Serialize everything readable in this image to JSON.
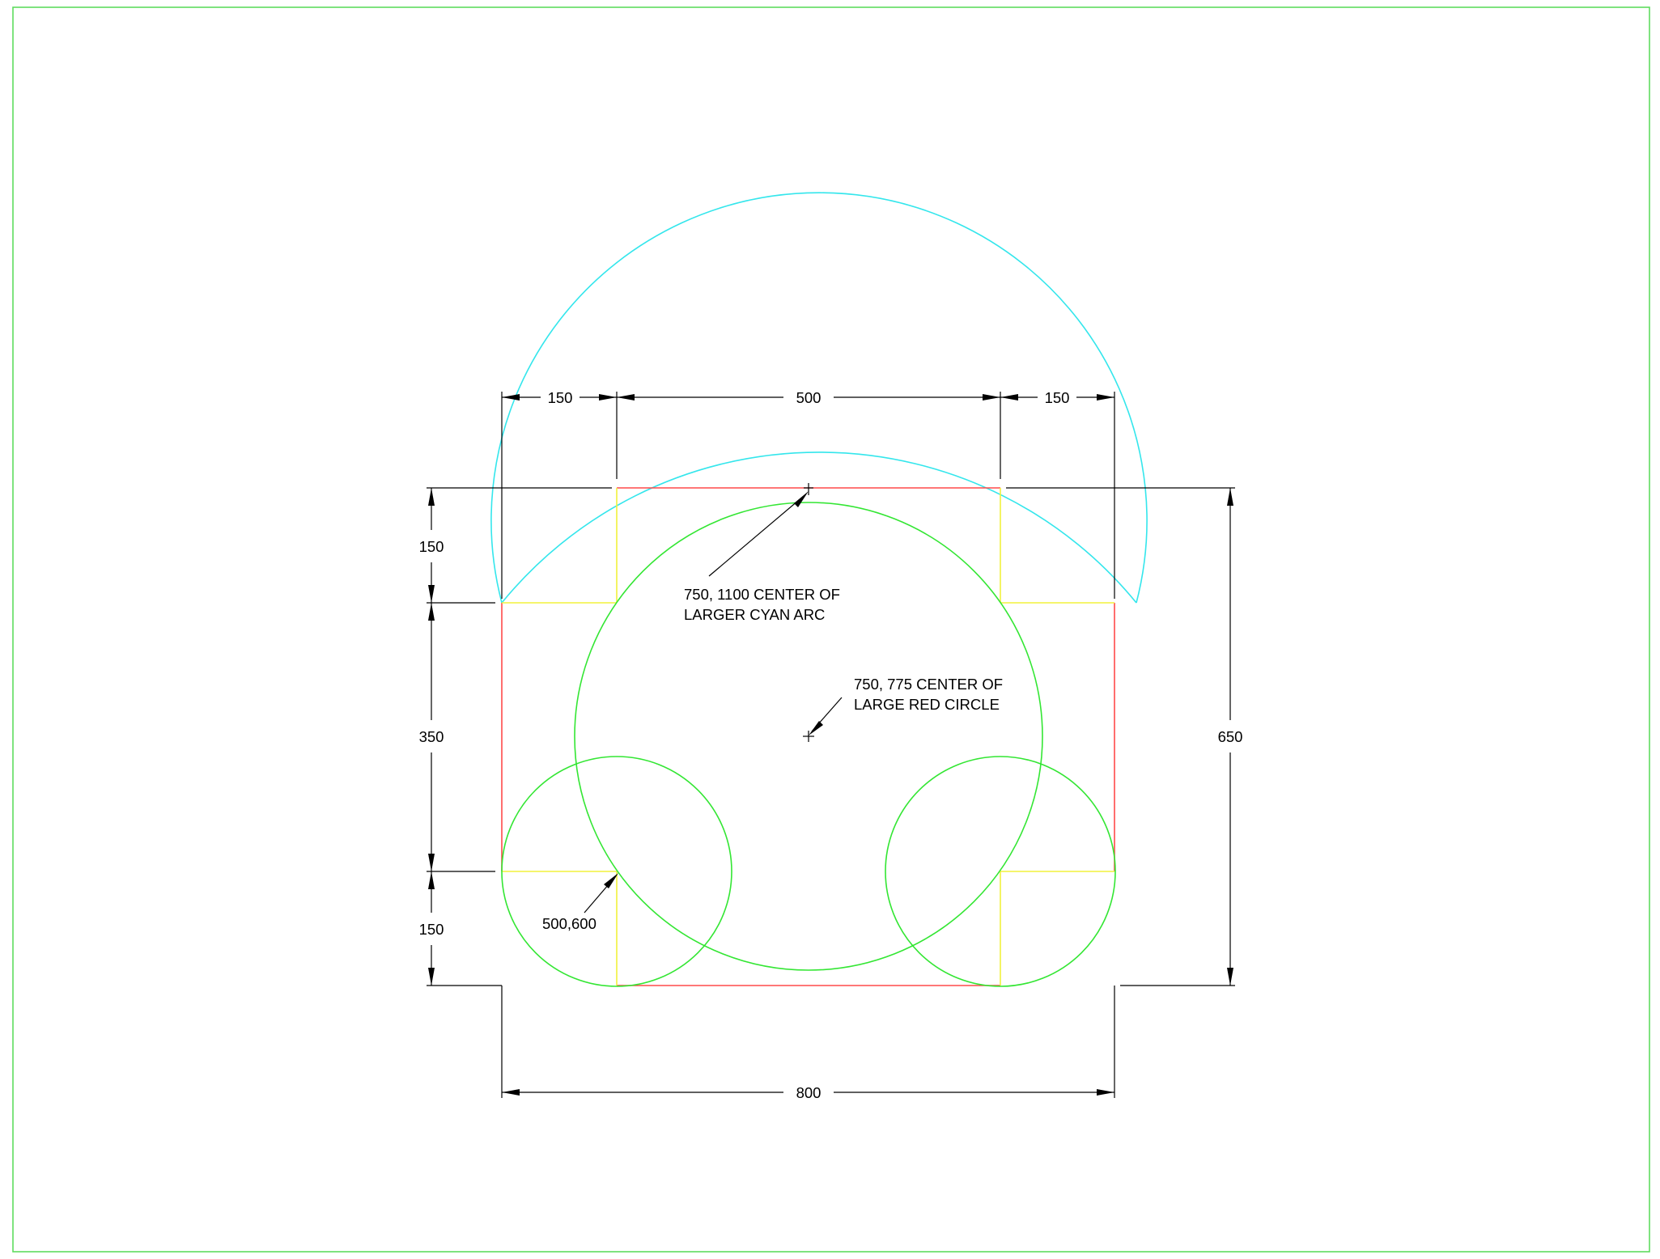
{
  "colors": {
    "border": "#5fdc5f",
    "cyan": "#34e6ec",
    "red": "#ff4a4a",
    "yellow": "#f2f23c",
    "green": "#33e633",
    "dimension": "#000000"
  },
  "dimensions": {
    "top_left": "150",
    "top_middle": "500",
    "top_right": "150",
    "left_top": "150",
    "left_middle": "350",
    "left_bottom": "150",
    "right_overall": "650",
    "bottom_overall": "800"
  },
  "notes": {
    "cyan_arc_center_line1": "750, 1100 CENTER OF",
    "cyan_arc_center_line2": "LARGER CYAN ARC",
    "red_circle_center_line1": "750, 775 CENTER OF",
    "red_circle_center_line2": "LARGE RED CIRCLE",
    "small_circle_point": "500,600"
  }
}
